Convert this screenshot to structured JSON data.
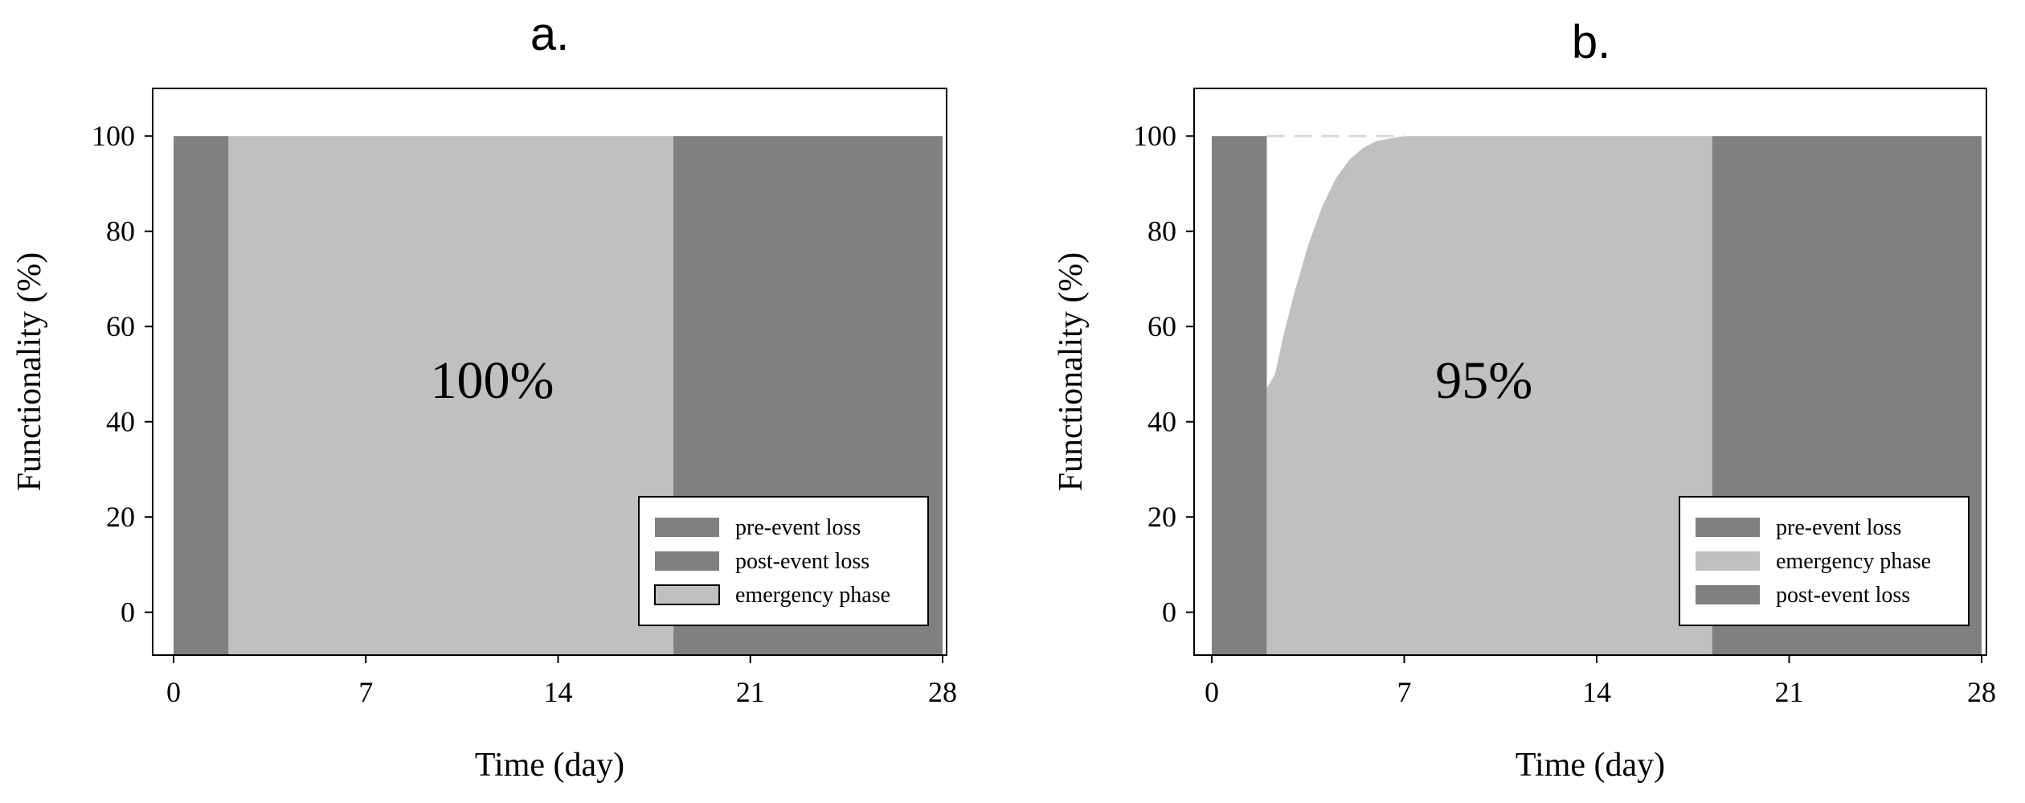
{
  "colors": {
    "dark": "#808080",
    "light": "#c0c0c0",
    "dashed": "#d9d9d9",
    "frame": "#000000"
  },
  "chart_data": [
    {
      "type": "area",
      "title": "a.",
      "xlabel": "Time (day)",
      "ylabel": "Functionality (%)",
      "xlim": [
        0,
        28
      ],
      "ylim": [
        -9,
        110
      ],
      "xticks": [
        "0",
        "7",
        "14",
        "21",
        "28"
      ],
      "yticks": [
        "0",
        "20",
        "40",
        "60",
        "80",
        "100"
      ],
      "annotation": {
        "text": "100%",
        "x": 11.6,
        "y": 45
      },
      "legend_position": "bottom-right",
      "regions": [
        {
          "name": "pre-event loss",
          "x_start": 0,
          "x_end": 2,
          "value": 100,
          "color": "#808080"
        },
        {
          "name": "emergency phase",
          "x_start": 2,
          "x_end": 18.2,
          "value": 100,
          "color": "#c0c0c0"
        },
        {
          "name": "post-event loss",
          "x_start": 18.2,
          "x_end": 28,
          "value": 100,
          "color": "#808080"
        }
      ],
      "legend": [
        {
          "label": "pre-event loss",
          "color": "#808080",
          "outlined": false
        },
        {
          "label": "post-event loss",
          "color": "#808080",
          "outlined": false
        },
        {
          "label": "emergency phase",
          "color": "#c0c0c0",
          "outlined": true
        }
      ]
    },
    {
      "type": "area",
      "title": "b.",
      "xlabel": "Time (day)",
      "ylabel": "Functionality (%)",
      "xlim": [
        0,
        28
      ],
      "ylim": [
        -9,
        110
      ],
      "xticks": [
        "0",
        "7",
        "14",
        "21",
        "28"
      ],
      "yticks": [
        "0",
        "20",
        "40",
        "60",
        "80",
        "100"
      ],
      "annotation": {
        "text": "95%",
        "x": 9.9,
        "y": 45
      },
      "legend_position": "bottom-right",
      "regions": [
        {
          "name": "pre-event loss",
          "x_start": 0,
          "x_end": 2,
          "value": 100,
          "color": "#808080"
        },
        {
          "name": "emergency phase",
          "x_start": 2,
          "x_end": 18.2,
          "color": "#c0c0c0",
          "curve": [
            [
              2,
              47
            ],
            [
              2.3,
              50
            ],
            [
              2.6,
              58
            ],
            [
              3,
              67
            ],
            [
              3.5,
              77
            ],
            [
              4,
              85
            ],
            [
              4.5,
              91
            ],
            [
              5,
              95
            ],
            [
              5.5,
              97.5
            ],
            [
              6,
              99
            ],
            [
              7,
              100
            ],
            [
              18.2,
              100
            ]
          ]
        },
        {
          "name": "post-event loss",
          "x_start": 18.2,
          "x_end": 28,
          "value": 100,
          "color": "#808080"
        }
      ],
      "reference_line": {
        "y": 100,
        "x_start": 2,
        "x_end": 7,
        "style": "dashed"
      },
      "legend": [
        {
          "label": "pre-event loss",
          "color": "#808080",
          "outlined": false
        },
        {
          "label": "emergency phase",
          "color": "#c0c0c0",
          "outlined": false
        },
        {
          "label": "post-event loss",
          "color": "#808080",
          "outlined": false
        }
      ]
    }
  ]
}
